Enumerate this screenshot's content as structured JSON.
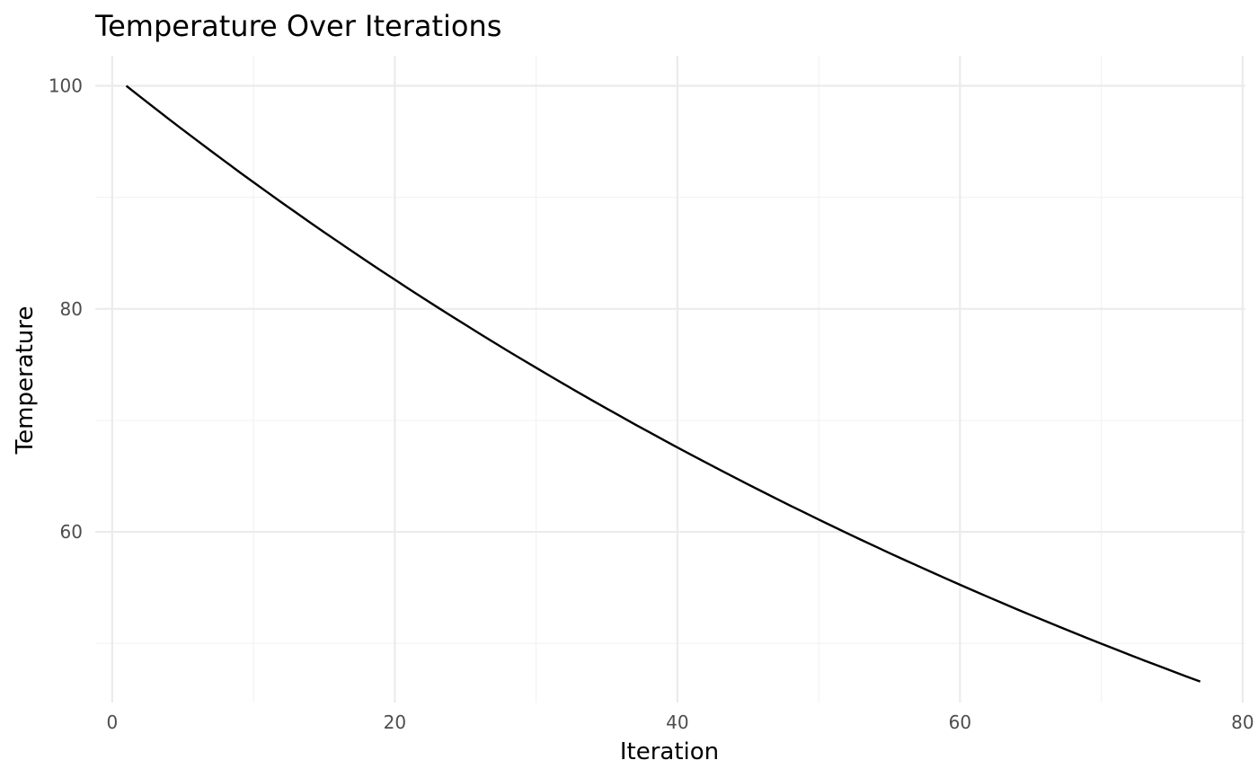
{
  "chart_data": {
    "type": "line",
    "title": "Temperature Over Iterations",
    "xlabel": "Iteration",
    "ylabel": "Temperature",
    "xlim": [
      -1.2,
      80.2
    ],
    "ylim": [
      44.7,
      102.7
    ],
    "x_ticks": [
      0,
      20,
      40,
      60,
      80
    ],
    "x_minor_ticks": [
      10,
      30,
      50,
      70
    ],
    "y_ticks": [
      60,
      80,
      100
    ],
    "y_minor_ticks": [
      50,
      70,
      90
    ],
    "grid": true,
    "legend": "none",
    "line_color": "#000000",
    "series": [
      {
        "x": [
          1,
          2,
          3,
          4,
          5,
          6,
          7,
          8,
          9,
          10,
          11,
          12,
          13,
          14,
          15,
          16,
          17,
          18,
          19,
          20,
          21,
          22,
          23,
          24,
          25,
          26,
          27,
          28,
          29,
          30,
          31,
          32,
          33,
          34,
          35,
          36,
          37,
          38,
          39,
          40,
          41,
          42,
          43,
          44,
          45,
          46,
          47,
          48,
          49,
          50,
          51,
          52,
          53,
          54,
          55,
          56,
          57,
          58,
          59,
          60,
          61,
          62,
          63,
          64,
          65,
          66,
          67,
          68,
          69,
          70,
          71,
          72,
          73,
          74,
          75,
          76,
          77
        ],
        "y": [
          100,
          99.0,
          98.01,
          97.03,
          96.06,
          95.1,
          94.15,
          93.21,
          92.27,
          91.35,
          90.44,
          89.53,
          88.64,
          87.75,
          86.87,
          86.01,
          85.15,
          84.29,
          83.45,
          82.62,
          81.79,
          80.97,
          80.16,
          79.36,
          78.57,
          77.78,
          77.0,
          76.23,
          75.47,
          74.72,
          73.97,
          73.23,
          72.5,
          71.77,
          71.06,
          70.35,
          69.64,
          68.95,
          68.26,
          67.57,
          66.9,
          66.23,
          65.57,
          64.91,
          64.26,
          63.62,
          62.98,
          62.35,
          61.73,
          61.11,
          60.5,
          59.89,
          59.29,
          58.7,
          58.11,
          57.53,
          56.96,
          56.39,
          55.82,
          55.26,
          54.71,
          54.16,
          53.62,
          53.08,
          52.55,
          52.03,
          51.51,
          50.99,
          50.48,
          49.98,
          49.48,
          48.98,
          48.49,
          48.01,
          47.53,
          47.05,
          46.58
        ]
      }
    ]
  }
}
